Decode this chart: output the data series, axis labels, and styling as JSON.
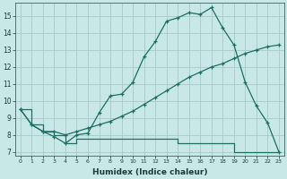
{
  "xlabel": "Humidex (Indice chaleur)",
  "bg_color": "#c8e8e8",
  "grid_color": "#a8c8c8",
  "line_color": "#1a6e62",
  "xlim": [
    -0.5,
    23.5
  ],
  "ylim": [
    6.8,
    15.8
  ],
  "xticks": [
    0,
    1,
    2,
    3,
    4,
    5,
    6,
    7,
    8,
    9,
    10,
    11,
    12,
    13,
    14,
    15,
    16,
    17,
    18,
    19,
    20,
    21,
    22,
    23
  ],
  "yticks": [
    7,
    8,
    9,
    10,
    11,
    12,
    13,
    14,
    15
  ],
  "line1_x": [
    0,
    1,
    2,
    3,
    4,
    5,
    6,
    7,
    8,
    9,
    10,
    11,
    12,
    13,
    14,
    15,
    16,
    17,
    18,
    19,
    20,
    21,
    22,
    23
  ],
  "line1_y": [
    9.5,
    8.6,
    8.2,
    7.9,
    7.5,
    8.0,
    8.1,
    9.3,
    10.3,
    10.4,
    11.1,
    12.6,
    13.5,
    14.7,
    14.9,
    15.2,
    15.1,
    15.5,
    14.3,
    13.3,
    11.1,
    9.7,
    8.7,
    7.0
  ],
  "line2_x": [
    0,
    1,
    2,
    3,
    4,
    5,
    6,
    7,
    8,
    9,
    10,
    11,
    12,
    13,
    14,
    15,
    16,
    17,
    18,
    19,
    20,
    21,
    22,
    23
  ],
  "line2_y": [
    9.5,
    8.6,
    8.2,
    8.2,
    8.0,
    8.2,
    8.4,
    8.6,
    8.8,
    9.1,
    9.4,
    9.8,
    10.2,
    10.6,
    11.0,
    11.4,
    11.7,
    12.0,
    12.2,
    12.5,
    12.8,
    13.0,
    13.2,
    13.3
  ],
  "line3_x": [
    0,
    1,
    2,
    3,
    4,
    5,
    6,
    7,
    8,
    9,
    10,
    11,
    12,
    13,
    14,
    15,
    16,
    17,
    18,
    19,
    20,
    21,
    22,
    23
  ],
  "line3_y": [
    9.5,
    8.6,
    8.2,
    8.0,
    7.5,
    7.75,
    7.75,
    7.75,
    7.75,
    7.75,
    7.75,
    7.75,
    7.75,
    7.75,
    7.5,
    7.5,
    7.5,
    7.5,
    7.5,
    7.0,
    7.0,
    7.0,
    7.0,
    7.0
  ]
}
